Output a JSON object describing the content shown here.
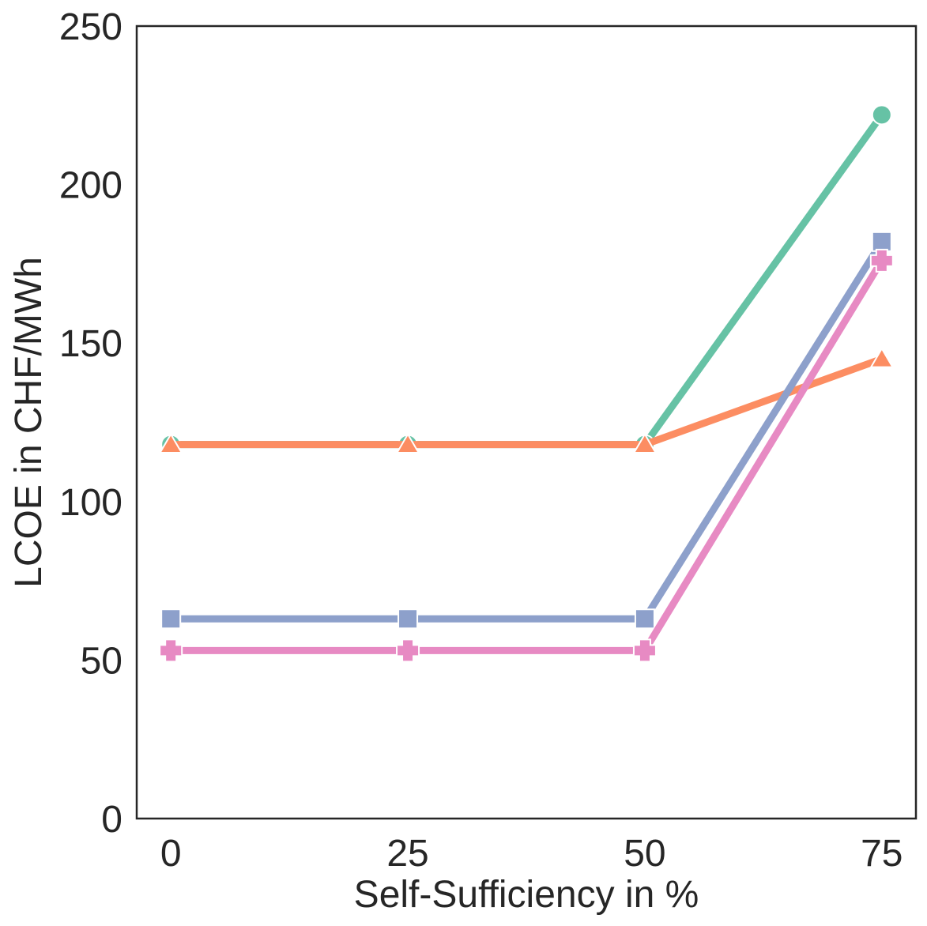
{
  "chart_data": {
    "type": "line",
    "title": "",
    "xlabel": "Self-Sufficiency in %",
    "ylabel": "LCOE in CHF/MWh",
    "x": [
      0,
      25,
      50,
      75
    ],
    "xticks": [
      "0",
      "25",
      "50",
      "75"
    ],
    "yticks": [
      "0",
      "50",
      "100",
      "150",
      "200",
      "250"
    ],
    "xlim": [
      -3.6,
      78.6
    ],
    "ylim": [
      0,
      250
    ],
    "grid": false,
    "legend": "none",
    "series": [
      {
        "marker": "circle",
        "color": "#66c2a5",
        "values": [
          118,
          118,
          118,
          222
        ]
      },
      {
        "marker": "triangle",
        "color": "#fc8d62",
        "values": [
          118,
          118,
          118,
          145
        ]
      },
      {
        "marker": "square",
        "color": "#8da0cb",
        "values": [
          63,
          63,
          63,
          182
        ]
      },
      {
        "marker": "plus",
        "color": "#e78ac3",
        "values": [
          53,
          53,
          53,
          176
        ]
      }
    ]
  }
}
